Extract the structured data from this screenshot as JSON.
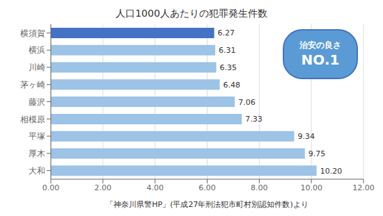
{
  "chart_data": {
    "type": "bar",
    "orientation": "horizontal",
    "title": "人口1000人あたりの犯罪発生件数",
    "categories": [
      "大和",
      "厚木",
      "平塚",
      "相模原",
      "藤沢",
      "茅ヶ崎",
      "川崎",
      "横浜",
      "横須賀"
    ],
    "values": [
      10.2,
      9.75,
      9.34,
      7.33,
      7.06,
      6.48,
      6.35,
      6.31,
      6.27
    ],
    "value_labels": [
      "10.20",
      "9.75",
      "9.34",
      "7.33",
      "7.06",
      "6.48",
      "6.35",
      "6.31",
      "6.27"
    ],
    "data_labels": true,
    "colors": [
      "#9DC3E6",
      "#9DC3E6",
      "#9DC3E6",
      "#9DC3E6",
      "#9DC3E6",
      "#9DC3E6",
      "#9DC3E6",
      "#9DC3E6",
      "#4472C4"
    ],
    "xlim": [
      0,
      12
    ],
    "xticks": [
      {
        "value": 0,
        "label": "0.00"
      },
      {
        "value": 2,
        "label": "2.00"
      },
      {
        "value": 4,
        "label": "4.00"
      },
      {
        "value": 6,
        "label": "6.00"
      },
      {
        "value": 8,
        "label": "8.00"
      },
      {
        "value": 10,
        "label": "10.00"
      },
      {
        "value": 12,
        "label": "12.00"
      }
    ],
    "xlabel": "「神奈川県警HP」(平成27年刑法犯市町村別認知件数)より",
    "grid": true,
    "annotations": [
      "治安の良さ",
      "NO.1"
    ]
  }
}
